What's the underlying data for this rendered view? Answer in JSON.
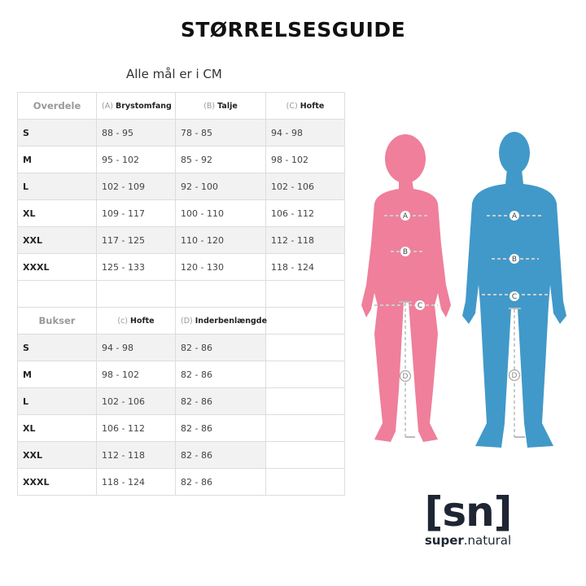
{
  "title": "STØRRELSESGUIDE",
  "subtitle": "Alle mål er i CM",
  "tops": {
    "section": "Overdele",
    "headers": [
      {
        "letter": "(A)",
        "name": "Brystomfang"
      },
      {
        "letter": "(B)",
        "name": "Talje"
      },
      {
        "letter": "(C)",
        "name": "Hofte"
      }
    ],
    "rows": [
      [
        "S",
        "88 - 95",
        "78 - 85",
        "94 - 98"
      ],
      [
        "M",
        "95 - 102",
        "85 - 92",
        "98 - 102"
      ],
      [
        "L",
        "102 - 109",
        "92 - 100",
        "102 - 106"
      ],
      [
        "XL",
        "109 - 117",
        "100 - 110",
        "106 - 112"
      ],
      [
        "XXL",
        "117 - 125",
        "110 - 120",
        "112 - 118"
      ],
      [
        "XXXL",
        "125 - 133",
        "120 - 130",
        "118 - 124"
      ]
    ]
  },
  "pants": {
    "section": "Bukser",
    "headers": [
      {
        "letter": "(c)",
        "name": "Hofte"
      },
      {
        "letter": "(D)",
        "name": "Inderbenlængde"
      }
    ],
    "rows": [
      [
        "S",
        "94 - 98",
        "82 - 86"
      ],
      [
        "M",
        "98 - 102",
        "82 - 86"
      ],
      [
        "L",
        "102 - 106",
        "82 - 86"
      ],
      [
        "XL",
        "106 - 112",
        "82 - 86"
      ],
      [
        "XXL",
        "112 - 118",
        "82 - 86"
      ],
      [
        "XXXL",
        "118 - 124",
        "82 - 86"
      ]
    ]
  },
  "figure": {
    "labels": [
      "A",
      "B",
      "C",
      "D"
    ],
    "colors": {
      "woman": "#ef7f9b",
      "man": "#4199c9"
    }
  },
  "logo": {
    "mark": "[sn]",
    "word_bold": "super",
    "word_rest": ".natural"
  }
}
